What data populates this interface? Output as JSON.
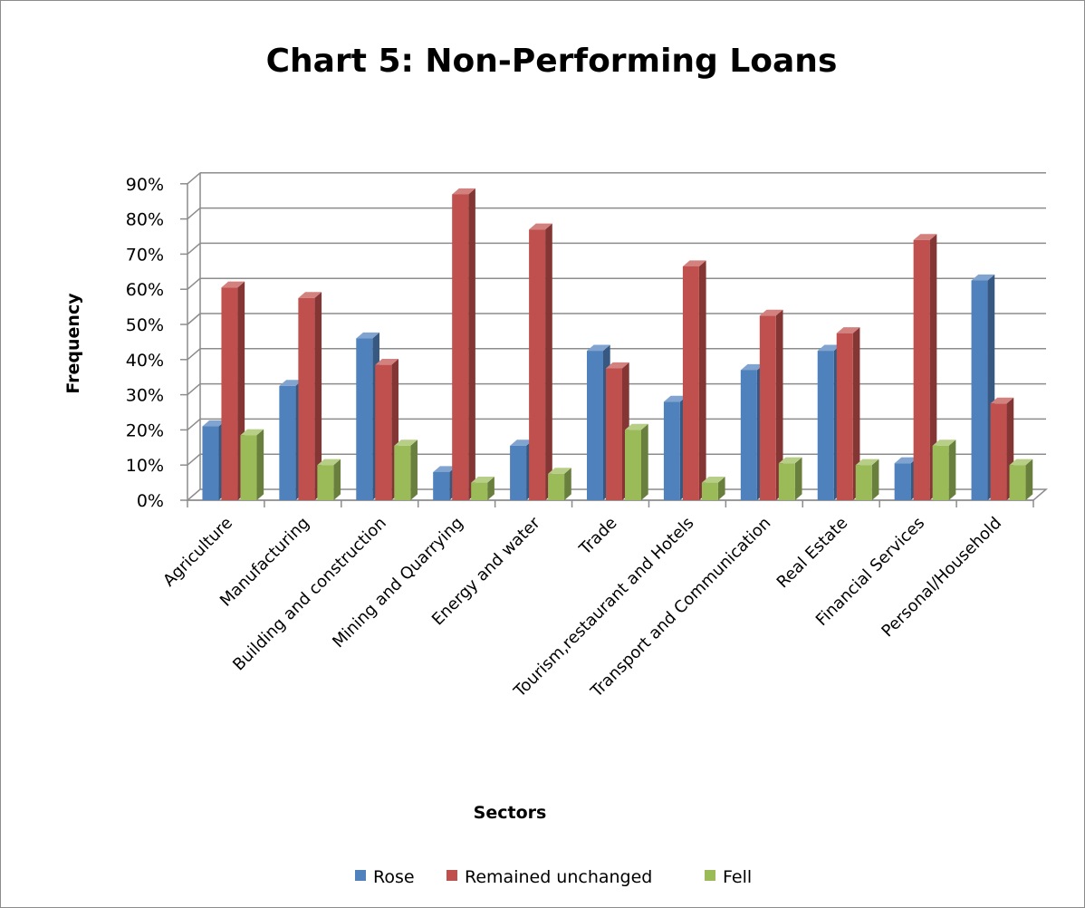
{
  "chart_data": {
    "type": "bar",
    "title": "Chart 5: Non-Performing Loans",
    "xlabel": "Sectors",
    "ylabel": "Frequency",
    "ylim": [
      0,
      90
    ],
    "yticks": [
      "0%",
      "10%",
      "20%",
      "30%",
      "40%",
      "50%",
      "60%",
      "70%",
      "80%",
      "90%"
    ],
    "grid": true,
    "legend_position": "bottom",
    "categories": [
      "Agriculture",
      "Manufacturing",
      "Building  and construction",
      "Mining and Quarrying",
      "Energy and water",
      "Trade",
      "Tourism,restaurant and Hotels",
      "Transport and Communication",
      "Real Estate",
      "Financial Services",
      "Personal/Household"
    ],
    "series": [
      {
        "name": "Rose",
        "color": "#4f81bd",
        "values": [
          21,
          32.5,
          46,
          8,
          15.5,
          42.5,
          28,
          37,
          42.5,
          10.5,
          62.5
        ]
      },
      {
        "name": "Remained unchanged",
        "color": "#c0504d",
        "values": [
          60.5,
          57.5,
          38.5,
          87,
          77,
          37.5,
          66.5,
          52.5,
          47.5,
          74,
          27.5
        ]
      },
      {
        "name": "Fell",
        "color": "#9bbb59",
        "values": [
          18.5,
          10,
          15.5,
          5,
          7.5,
          20,
          5,
          10.5,
          10,
          15.5,
          10
        ]
      }
    ]
  }
}
